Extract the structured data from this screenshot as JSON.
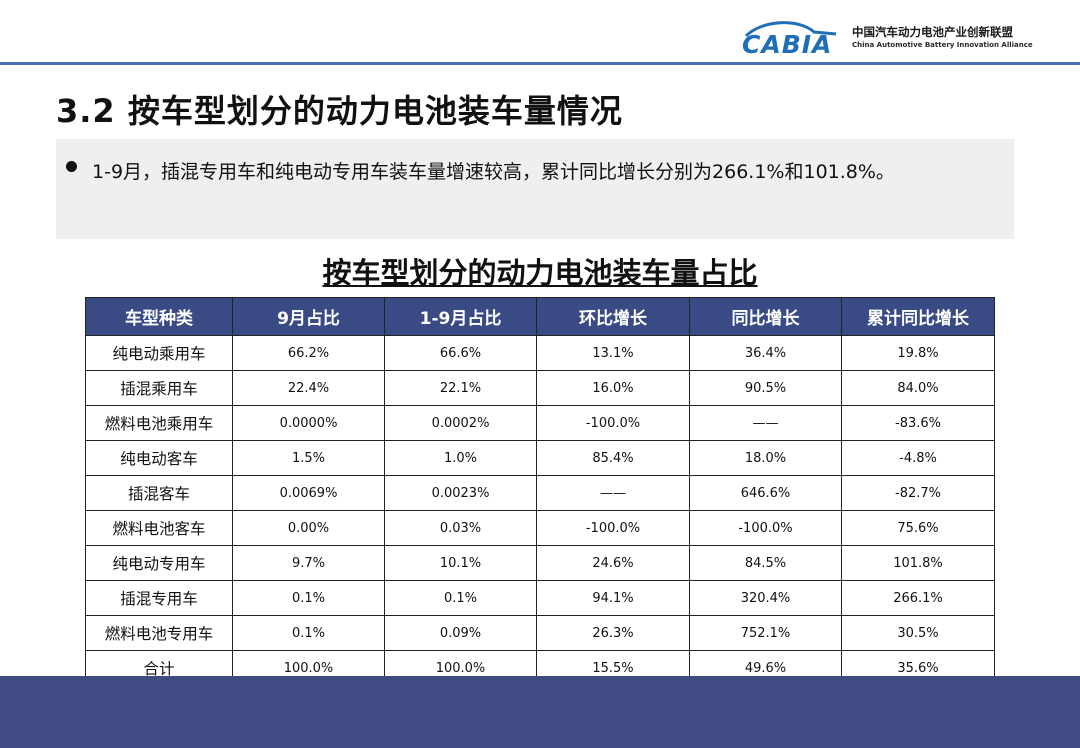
{
  "logo": {
    "word": "CABIA",
    "cn": "中国汽车动力电池产业创新联盟",
    "en": "China Automotive Battery Innovation Alliance",
    "color": "#1f6fb8"
  },
  "title": "3.2 按车型划分的动力电池装车量情况",
  "bullet": "1-9月，插混专用车和纯电动专用车装车量增速较高，累计同比增长分别为266.1%和101.8%。",
  "table": {
    "title": "按车型划分的动力电池装车量占比",
    "headers": [
      "车型种类",
      "9月占比",
      "1-9月占比",
      "环比增长",
      "同比增长",
      "累计同比增长"
    ],
    "rows": [
      [
        "纯电动乘用车",
        "66.2%",
        "66.6%",
        "13.1%",
        "36.4%",
        "19.8%"
      ],
      [
        "插混乘用车",
        "22.4%",
        "22.1%",
        "16.0%",
        "90.5%",
        "84.0%"
      ],
      [
        "燃料电池乘用车",
        "0.0000%",
        "0.0002%",
        "-100.0%",
        "——",
        "-83.6%"
      ],
      [
        "纯电动客车",
        "1.5%",
        "1.0%",
        "85.4%",
        "18.0%",
        "-4.8%"
      ],
      [
        "插混客车",
        "0.0069%",
        "0.0023%",
        "——",
        "646.6%",
        "-82.7%"
      ],
      [
        "燃料电池客车",
        "0.00%",
        "0.03%",
        "-100.0%",
        "-100.0%",
        "75.6%"
      ],
      [
        "纯电动专用车",
        "9.7%",
        "10.1%",
        "24.6%",
        "84.5%",
        "101.8%"
      ],
      [
        "插混专用车",
        "0.1%",
        "0.1%",
        "94.1%",
        "320.4%",
        "266.1%"
      ],
      [
        "燃料电池专用车",
        "0.1%",
        "0.09%",
        "26.3%",
        "752.1%",
        "30.5%"
      ],
      [
        "合计",
        "100.0%",
        "100.0%",
        "15.5%",
        "49.6%",
        "35.6%"
      ]
    ]
  },
  "colors": {
    "header_bg": "#3a4a85",
    "rule": "#4a6fb5",
    "bottom_band": "#3f4b82"
  }
}
